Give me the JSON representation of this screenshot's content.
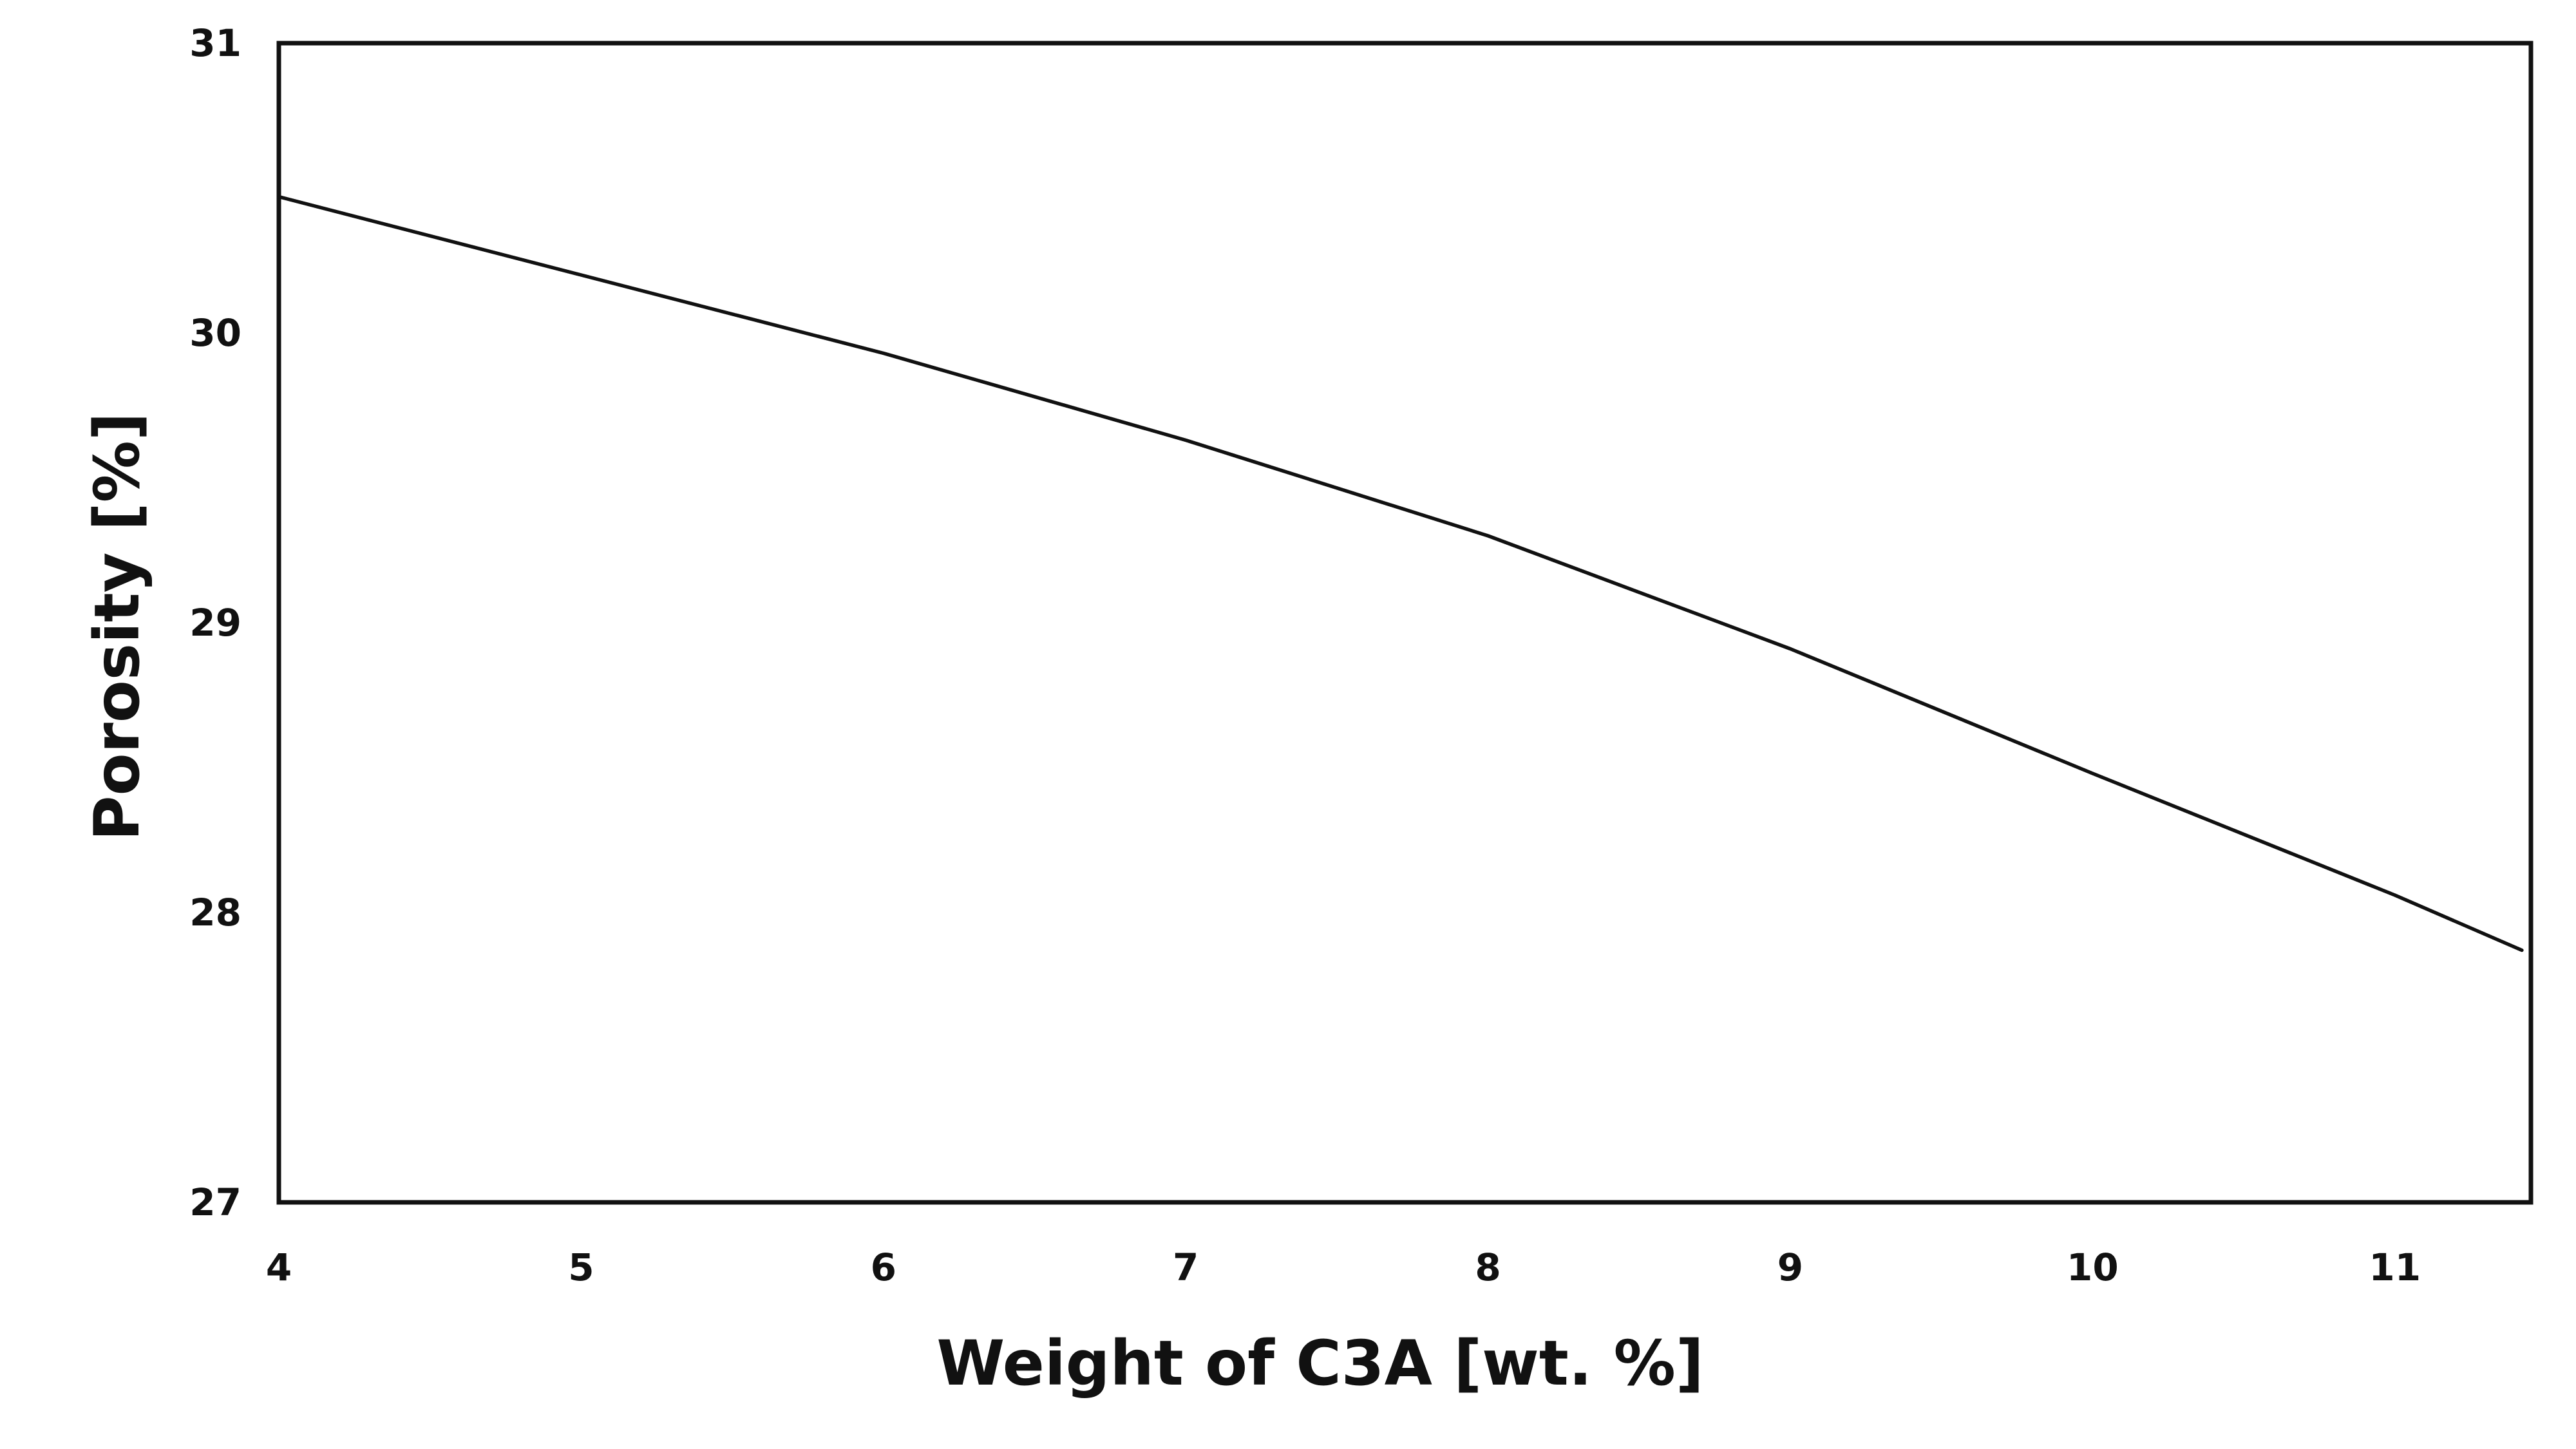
{
  "chart_data": {
    "type": "line",
    "title": "",
    "xlabel": "Weight of C3A [wt. %]",
    "ylabel": "Porosity [%]",
    "xlim": [
      4,
      11.45
    ],
    "ylim": [
      27,
      31
    ],
    "grid": false,
    "legend": "none",
    "x_ticks": [
      4,
      5,
      6,
      7,
      8,
      9,
      10,
      11
    ],
    "x_tick_labels": [
      "4",
      "5",
      "6",
      "7",
      "8",
      "9",
      "10",
      "11"
    ],
    "y_ticks": [
      27,
      28,
      29,
      30,
      31
    ],
    "y_tick_labels": [
      "27",
      "28",
      "29",
      "30",
      "31"
    ],
    "series": [
      {
        "color": "#111111",
        "x": [
          4,
          5,
          6,
          7,
          8,
          9,
          10,
          11,
          11.42
        ],
        "y": [
          30.47,
          30.2,
          29.93,
          29.63,
          29.3,
          28.91,
          28.48,
          28.06,
          27.87
        ]
      }
    ]
  }
}
